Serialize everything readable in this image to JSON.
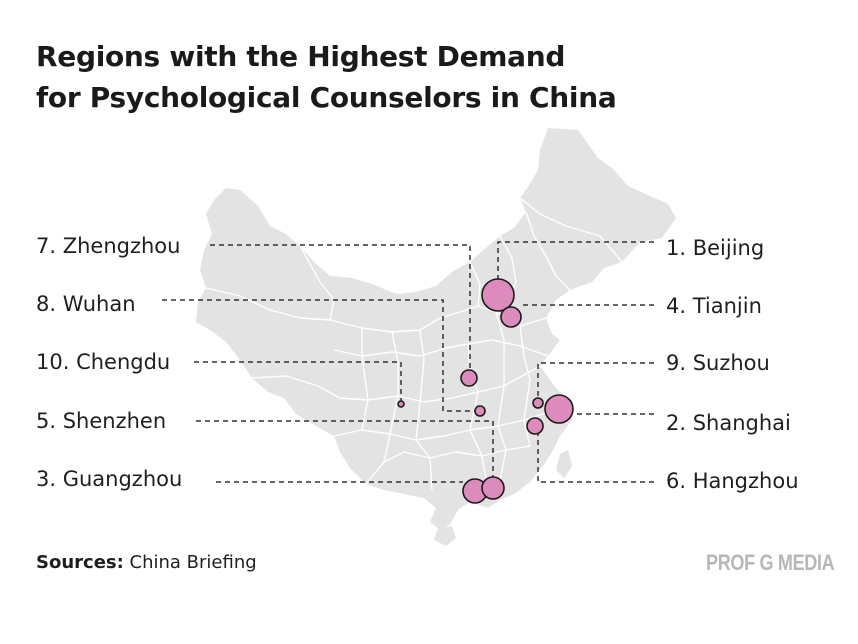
{
  "title": {
    "line1": "Regions with the Highest Demand",
    "line2": "for Psychological Counselors in China"
  },
  "map": {
    "region": "China",
    "land_color": "#e3e3e3",
    "border_color": "#ffffff",
    "marker_fill": "#dd8bbd",
    "marker_stroke": "#1a1a1a",
    "leader_color": "#333333",
    "cities": [
      {
        "rank_label": "1.  Beijing",
        "city": "Beijing",
        "rank": 1
      },
      {
        "rank_label": "2. Shanghai",
        "city": "Shanghai",
        "rank": 2
      },
      {
        "rank_label": "3. Guangzhou",
        "city": "Guangzhou",
        "rank": 3
      },
      {
        "rank_label": "4. Tianjin",
        "city": "Tianjin",
        "rank": 4
      },
      {
        "rank_label": "5. Shenzhen",
        "city": "Shenzhen",
        "rank": 5
      },
      {
        "rank_label": "6. Hangzhou",
        "city": "Hangzhou",
        "rank": 6
      },
      {
        "rank_label": "7. Zhengzhou",
        "city": "Zhengzhou",
        "rank": 7
      },
      {
        "rank_label": "8. Wuhan",
        "city": "Wuhan",
        "rank": 8
      },
      {
        "rank_label": "9. Suzhou",
        "city": "Suzhou",
        "rank": 9
      },
      {
        "rank_label": "10. Chengdu",
        "city": "Chengdu",
        "rank": 10
      }
    ]
  },
  "footer": {
    "sources_label": "Sources:",
    "sources_value": "China Briefing",
    "brand": "PROF G MEDIA"
  }
}
